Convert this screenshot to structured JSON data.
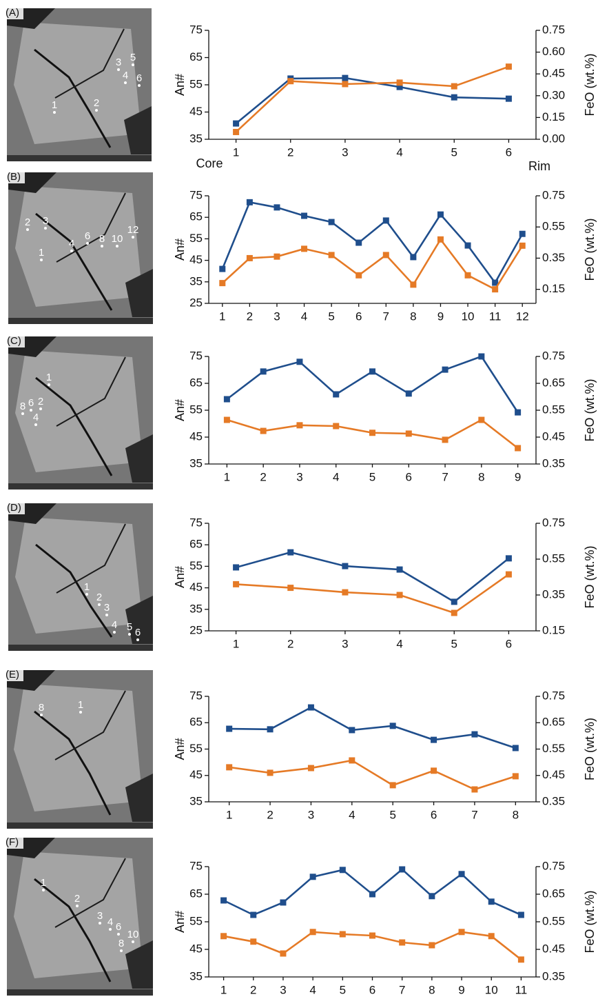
{
  "chart_data": [
    {
      "type": "line",
      "panel_label": "(A)",
      "image_labels": [
        "1",
        "2",
        "3",
        "4",
        "5",
        "6"
      ],
      "annotations": [
        "Core",
        "Rim"
      ],
      "categories": [
        "1",
        "2",
        "3",
        "4",
        "5",
        "6"
      ],
      "ylim": [
        35,
        75
      ],
      "yticks": [
        35,
        45,
        55,
        65,
        75
      ],
      "y2lim": [
        0,
        0.75
      ],
      "y2ticks": [
        {
          "value": 0,
          "label": "0.00"
        },
        0.15,
        {
          "value": 0.3,
          "label": "0.30"
        },
        0.45,
        {
          "value": 0.6,
          "label": "0.60"
        },
        0.75
      ],
      "series": [
        {
          "name": "An#",
          "color": "#1f4e8c",
          "values": [
            40.8,
            57.3,
            57.5,
            54.2,
            50.4,
            49.9
          ]
        },
        {
          "name": "FeO (wt.%)",
          "color": "#e57a26",
          "axis": "y2",
          "values": [
            0.05,
            0.4,
            0.38,
            0.39,
            0.365,
            0.5
          ]
        }
      ]
    },
    {
      "type": "line",
      "panel_label": "(B)",
      "image_labels": [
        "2",
        "3",
        "1",
        "4",
        "6",
        "8",
        "10",
        "12"
      ],
      "categories": [
        "1",
        "2",
        "3",
        "4",
        "5",
        "6",
        "7",
        "8",
        "9",
        "10",
        "11",
        "12"
      ],
      "ylim": [
        25,
        75
      ],
      "yticks": [
        25,
        35,
        45,
        55,
        65,
        75
      ],
      "y2lim": [
        0.06,
        0.75
      ],
      "y2ticks": [
        0.15,
        0.35,
        0.55,
        0.75
      ],
      "series": [
        {
          "name": "An#",
          "color": "#1f4e8c",
          "values": [
            41,
            72,
            69.6,
            65.7,
            62.8,
            53.2,
            63.5,
            46.5,
            66.3,
            51.9,
            34.6,
            57.3
          ]
        },
        {
          "name": "FeO (wt.%)",
          "color": "#e57a26",
          "axis": "y2",
          "values": [
            0.19,
            0.35,
            0.36,
            0.41,
            0.37,
            0.24,
            0.37,
            0.18,
            0.47,
            0.24,
            0.15,
            0.43
          ]
        }
      ]
    },
    {
      "type": "line",
      "panel_label": "(C)",
      "image_labels": [
        "8",
        "6",
        "2",
        "1",
        "4"
      ],
      "categories": [
        "1",
        "2",
        "3",
        "4",
        "5",
        "6",
        "7",
        "8",
        "9"
      ],
      "ylim": [
        35,
        75
      ],
      "yticks": [
        35,
        45,
        55,
        65,
        75
      ],
      "y2lim": [
        0.35,
        0.75
      ],
      "y2ticks": [
        0.35,
        0.45,
        0.55,
        0.65,
        0.75
      ],
      "series": [
        {
          "name": "An#",
          "color": "#1f4e8c",
          "values": [
            59.1,
            69.4,
            73,
            60.9,
            69.4,
            61.2,
            70.1,
            75,
            54.2
          ]
        },
        {
          "name": "FeO (wt.%)",
          "color": "#e57a26",
          "axis": "y2",
          "values": [
            0.514,
            0.473,
            0.494,
            0.491,
            0.466,
            0.463,
            0.44,
            0.514,
            0.409
          ]
        }
      ]
    },
    {
      "type": "line",
      "panel_label": "(D)",
      "image_labels": [
        "1",
        "2",
        "3",
        "4",
        "5",
        "6"
      ],
      "categories": [
        "1",
        "2",
        "3",
        "4",
        "5",
        "6"
      ],
      "ylim": [
        25,
        75
      ],
      "yticks": [
        25,
        35,
        45,
        55,
        65,
        75
      ],
      "y2lim": [
        0.15,
        0.75
      ],
      "y2ticks": [
        0.15,
        0.35,
        0.55,
        0.75
      ],
      "series": [
        {
          "name": "An#",
          "color": "#1f4e8c",
          "values": [
            54.5,
            61.5,
            55.1,
            53.5,
            38.5,
            58.7
          ]
        },
        {
          "name": "FeO (wt.%)",
          "color": "#e57a26",
          "axis": "y2",
          "values": [
            0.41,
            0.39,
            0.365,
            0.35,
            0.25,
            0.465
          ]
        }
      ]
    },
    {
      "type": "line",
      "panel_label": "(E)",
      "image_labels": [
        "8",
        "1"
      ],
      "categories": [
        "1",
        "2",
        "3",
        "4",
        "5",
        "6",
        "7",
        "8"
      ],
      "ylim": [
        35,
        75
      ],
      "yticks": [
        35,
        45,
        55,
        65,
        75
      ],
      "y2lim": [
        0.35,
        0.75
      ],
      "y2ticks": [
        0.35,
        0.45,
        0.55,
        0.65,
        0.75
      ],
      "series": [
        {
          "name": "An#",
          "color": "#1f4e8c",
          "values": [
            62.7,
            62.5,
            70.8,
            62.2,
            63.8,
            58.5,
            60.6,
            55.4
          ]
        },
        {
          "name": "FeO (wt.%)",
          "color": "#e57a26",
          "axis": "y2",
          "values": [
            0.481,
            0.46,
            0.478,
            0.507,
            0.413,
            0.468,
            0.397,
            0.447
          ]
        }
      ]
    },
    {
      "type": "line",
      "panel_label": "(F)",
      "image_labels": [
        "1",
        "2",
        "3",
        "4",
        "6",
        "8",
        "10"
      ],
      "categories": [
        "1",
        "2",
        "3",
        "4",
        "5",
        "6",
        "7",
        "8",
        "9",
        "10",
        "11"
      ],
      "ylim": [
        35,
        75
      ],
      "yticks": [
        35,
        45,
        55,
        65,
        75
      ],
      "y2lim": [
        0.35,
        0.75
      ],
      "y2ticks": [
        0.35,
        0.45,
        0.55,
        0.65,
        0.75
      ],
      "series": [
        {
          "name": "An#",
          "color": "#1f4e8c",
          "values": [
            62.75,
            57.5,
            62,
            71.3,
            73.8,
            65,
            74,
            64.3,
            72.3,
            62.3,
            57.5
          ]
        },
        {
          "name": "FeO (wt.%)",
          "color": "#e57a26",
          "axis": "y2",
          "values": [
            0.498,
            0.478,
            0.435,
            0.513,
            0.505,
            0.5,
            0.475,
            0.465,
            0.513,
            0.498,
            0.413
          ]
        }
      ]
    }
  ]
}
